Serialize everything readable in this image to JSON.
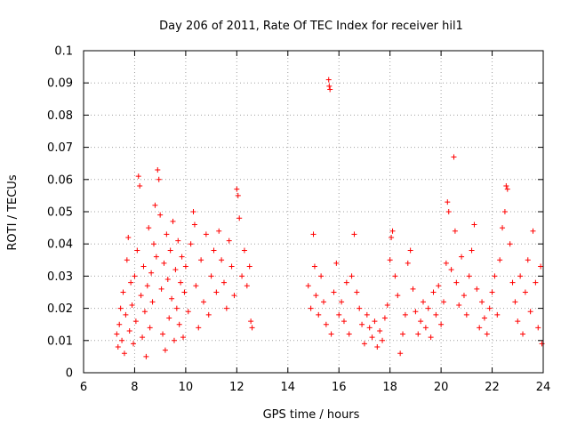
{
  "chart_data": {
    "type": "scatter",
    "title": "Day 206 of 2011, Rate Of TEC Index for receiver hil1",
    "xlabel": "GPS time / hours",
    "ylabel": "ROTI / TECUs",
    "xlim": [
      6,
      24
    ],
    "ylim": [
      0,
      0.1
    ],
    "xticks": [
      6,
      8,
      10,
      12,
      14,
      16,
      18,
      20,
      22,
      24
    ],
    "xtick_labels": [
      "6",
      "8",
      "10",
      "12",
      "14",
      "16",
      "18",
      "20",
      "22",
      "24"
    ],
    "yticks": [
      0,
      0.01,
      0.02,
      0.03,
      0.04,
      0.05,
      0.06,
      0.07,
      0.08,
      0.09,
      0.1
    ],
    "ytick_labels": [
      "0",
      "0.01",
      "0.02",
      "0.03",
      "0.04",
      "0.05",
      "0.06",
      "0.07",
      "0.08",
      "0.09",
      "0.1"
    ],
    "grid": true,
    "marker": "+",
    "series": [
      {
        "name": "ROTI",
        "color": "#ff0000",
        "points": [
          [
            7.3,
            0.012
          ],
          [
            7.35,
            0.008
          ],
          [
            7.4,
            0.015
          ],
          [
            7.45,
            0.02
          ],
          [
            7.5,
            0.01
          ],
          [
            7.55,
            0.025
          ],
          [
            7.6,
            0.006
          ],
          [
            7.65,
            0.018
          ],
          [
            7.7,
            0.035
          ],
          [
            7.75,
            0.042
          ],
          [
            7.8,
            0.013
          ],
          [
            7.85,
            0.028
          ],
          [
            7.9,
            0.021
          ],
          [
            7.95,
            0.009
          ],
          [
            8.0,
            0.03
          ],
          [
            8.05,
            0.016
          ],
          [
            8.1,
            0.038
          ],
          [
            8.15,
            0.061
          ],
          [
            8.2,
            0.058
          ],
          [
            8.25,
            0.024
          ],
          [
            8.3,
            0.011
          ],
          [
            8.35,
            0.033
          ],
          [
            8.4,
            0.019
          ],
          [
            8.45,
            0.005
          ],
          [
            8.5,
            0.027
          ],
          [
            8.55,
            0.045
          ],
          [
            8.6,
            0.014
          ],
          [
            8.65,
            0.031
          ],
          [
            8.7,
            0.022
          ],
          [
            8.75,
            0.04
          ],
          [
            8.8,
            0.052
          ],
          [
            8.85,
            0.036
          ],
          [
            8.9,
            0.063
          ],
          [
            8.95,
            0.06
          ],
          [
            9.0,
            0.049
          ],
          [
            9.05,
            0.026
          ],
          [
            9.1,
            0.012
          ],
          [
            9.15,
            0.034
          ],
          [
            9.2,
            0.007
          ],
          [
            9.25,
            0.043
          ],
          [
            9.3,
            0.029
          ],
          [
            9.35,
            0.017
          ],
          [
            9.4,
            0.038
          ],
          [
            9.45,
            0.023
          ],
          [
            9.5,
            0.047
          ],
          [
            9.55,
            0.01
          ],
          [
            9.6,
            0.032
          ],
          [
            9.65,
            0.02
          ],
          [
            9.7,
            0.041
          ],
          [
            9.75,
            0.015
          ],
          [
            9.8,
            0.028
          ],
          [
            9.85,
            0.036
          ],
          [
            9.9,
            0.011
          ],
          [
            9.95,
            0.025
          ],
          [
            10.0,
            0.033
          ],
          [
            10.1,
            0.019
          ],
          [
            10.2,
            0.04
          ],
          [
            10.3,
            0.05
          ],
          [
            10.35,
            0.046
          ],
          [
            10.4,
            0.027
          ],
          [
            10.5,
            0.014
          ],
          [
            10.6,
            0.035
          ],
          [
            10.7,
            0.022
          ],
          [
            10.8,
            0.043
          ],
          [
            10.9,
            0.018
          ],
          [
            11.0,
            0.03
          ],
          [
            11.1,
            0.038
          ],
          [
            11.2,
            0.025
          ],
          [
            11.3,
            0.044
          ],
          [
            11.4,
            0.035
          ],
          [
            11.5,
            0.028
          ],
          [
            11.6,
            0.02
          ],
          [
            11.7,
            0.041
          ],
          [
            11.8,
            0.033
          ],
          [
            11.9,
            0.024
          ],
          [
            12.0,
            0.057
          ],
          [
            12.05,
            0.055
          ],
          [
            12.1,
            0.048
          ],
          [
            12.2,
            0.03
          ],
          [
            12.3,
            0.038
          ],
          [
            12.4,
            0.027
          ],
          [
            12.5,
            0.033
          ],
          [
            12.55,
            0.016
          ],
          [
            12.6,
            0.014
          ],
          [
            14.8,
            0.027
          ],
          [
            14.9,
            0.02
          ],
          [
            15.0,
            0.043
          ],
          [
            15.05,
            0.033
          ],
          [
            15.1,
            0.024
          ],
          [
            15.2,
            0.018
          ],
          [
            15.3,
            0.03
          ],
          [
            15.4,
            0.022
          ],
          [
            15.5,
            0.015
          ],
          [
            15.6,
            0.091
          ],
          [
            15.62,
            0.089
          ],
          [
            15.65,
            0.088
          ],
          [
            15.7,
            0.012
          ],
          [
            15.8,
            0.025
          ],
          [
            15.9,
            0.034
          ],
          [
            16.0,
            0.018
          ],
          [
            16.1,
            0.022
          ],
          [
            16.2,
            0.016
          ],
          [
            16.3,
            0.028
          ],
          [
            16.4,
            0.012
          ],
          [
            16.5,
            0.03
          ],
          [
            16.6,
            0.043
          ],
          [
            16.7,
            0.025
          ],
          [
            16.8,
            0.02
          ],
          [
            16.9,
            0.015
          ],
          [
            17.0,
            0.009
          ],
          [
            17.1,
            0.018
          ],
          [
            17.2,
            0.014
          ],
          [
            17.3,
            0.011
          ],
          [
            17.4,
            0.016
          ],
          [
            17.5,
            0.008
          ],
          [
            17.6,
            0.013
          ],
          [
            17.7,
            0.01
          ],
          [
            17.8,
            0.017
          ],
          [
            17.9,
            0.021
          ],
          [
            18.0,
            0.035
          ],
          [
            18.05,
            0.042
          ],
          [
            18.1,
            0.044
          ],
          [
            18.2,
            0.03
          ],
          [
            18.3,
            0.024
          ],
          [
            18.4,
            0.006
          ],
          [
            18.5,
            0.012
          ],
          [
            18.6,
            0.018
          ],
          [
            18.7,
            0.034
          ],
          [
            18.8,
            0.038
          ],
          [
            18.9,
            0.026
          ],
          [
            19.0,
            0.019
          ],
          [
            19.1,
            0.012
          ],
          [
            19.2,
            0.016
          ],
          [
            19.3,
            0.022
          ],
          [
            19.4,
            0.014
          ],
          [
            19.5,
            0.02
          ],
          [
            19.6,
            0.011
          ],
          [
            19.7,
            0.025
          ],
          [
            19.8,
            0.018
          ],
          [
            19.9,
            0.027
          ],
          [
            20.0,
            0.015
          ],
          [
            20.1,
            0.022
          ],
          [
            20.2,
            0.034
          ],
          [
            20.25,
            0.053
          ],
          [
            20.3,
            0.05
          ],
          [
            20.4,
            0.032
          ],
          [
            20.5,
            0.067
          ],
          [
            20.55,
            0.044
          ],
          [
            20.6,
            0.028
          ],
          [
            20.7,
            0.021
          ],
          [
            20.8,
            0.036
          ],
          [
            20.9,
            0.024
          ],
          [
            21.0,
            0.018
          ],
          [
            21.1,
            0.03
          ],
          [
            21.2,
            0.038
          ],
          [
            21.3,
            0.046
          ],
          [
            21.4,
            0.026
          ],
          [
            21.5,
            0.014
          ],
          [
            21.6,
            0.022
          ],
          [
            21.7,
            0.017
          ],
          [
            21.8,
            0.012
          ],
          [
            21.9,
            0.02
          ],
          [
            22.0,
            0.025
          ],
          [
            22.1,
            0.03
          ],
          [
            22.2,
            0.018
          ],
          [
            22.3,
            0.035
          ],
          [
            22.4,
            0.045
          ],
          [
            22.5,
            0.05
          ],
          [
            22.55,
            0.058
          ],
          [
            22.6,
            0.057
          ],
          [
            22.7,
            0.04
          ],
          [
            22.8,
            0.028
          ],
          [
            22.9,
            0.022
          ],
          [
            23.0,
            0.016
          ],
          [
            23.1,
            0.03
          ],
          [
            23.2,
            0.012
          ],
          [
            23.3,
            0.025
          ],
          [
            23.4,
            0.035
          ],
          [
            23.5,
            0.019
          ],
          [
            23.6,
            0.044
          ],
          [
            23.7,
            0.028
          ],
          [
            23.8,
            0.014
          ],
          [
            23.9,
            0.033
          ],
          [
            23.95,
            0.009
          ]
        ]
      }
    ]
  }
}
